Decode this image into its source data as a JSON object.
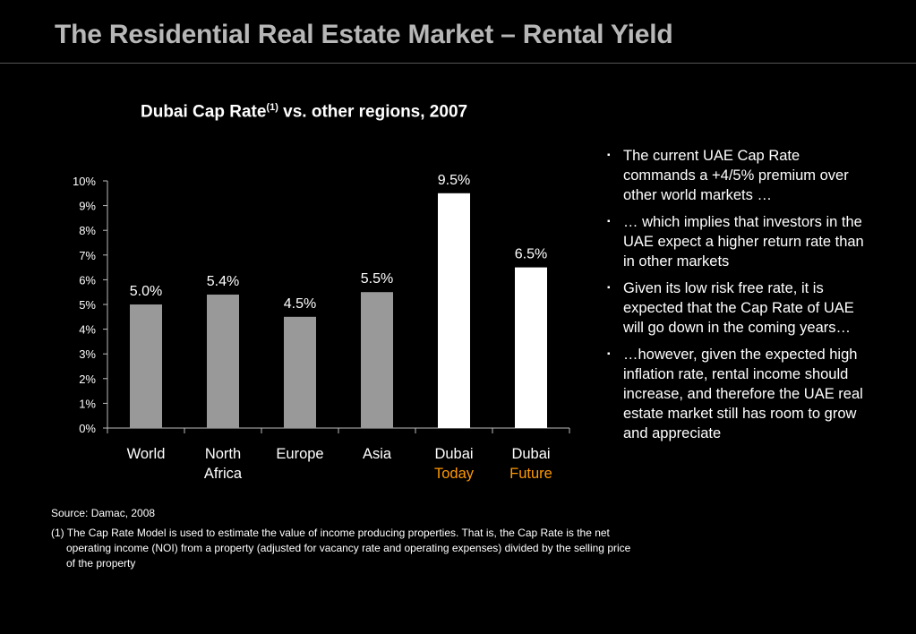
{
  "header": {
    "title": "The Residential Real Estate Market – Rental Yield"
  },
  "chart_title": {
    "text": "Dubai Cap Rate",
    "superscript": "(1)",
    "suffix": " vs. other regions, 2007"
  },
  "chart_data": {
    "type": "bar",
    "categories": [
      [
        "World"
      ],
      [
        "North",
        "Africa"
      ],
      [
        "Europe"
      ],
      [
        "Asia"
      ],
      [
        "Dubai",
        "Today"
      ],
      [
        "Dubai",
        "Future"
      ]
    ],
    "values": [
      5.0,
      5.4,
      4.5,
      5.5,
      9.5,
      6.5
    ],
    "data_labels": [
      "5.0%",
      "5.4%",
      "4.5%",
      "5.5%",
      "9.5%",
      "6.5%"
    ],
    "bar_colors": [
      "#999999",
      "#999999",
      "#999999",
      "#999999",
      "#ffffff",
      "#ffffff"
    ],
    "second_line_color": "#ff9900",
    "ylim": [
      0,
      10
    ],
    "yticks": [
      "0%",
      "1%",
      "2%",
      "3%",
      "4%",
      "5%",
      "6%",
      "7%",
      "8%",
      "9%",
      "10%"
    ],
    "grid": false,
    "legend": "none"
  },
  "bullets": [
    "The current UAE Cap Rate commands a +4/5% premium over other world markets …",
    "… which implies that investors in the UAE expect a higher return rate than in other markets",
    "Given its low risk free rate, it is expected that the Cap Rate of UAE will go down in the coming years…",
    "…however, given the expected high inflation rate, rental income should increase, and therefore the UAE real estate market still has room to grow and appreciate"
  ],
  "bullet_marker": "▪",
  "source": "Source: Damac, 2008",
  "footnote": "(1) The Cap Rate Model is used to estimate the value of income producing properties. That is, the Cap Rate is the net operating income (NOI) from a property (adjusted for vacancy rate and operating expenses) divided by the selling price of the property"
}
